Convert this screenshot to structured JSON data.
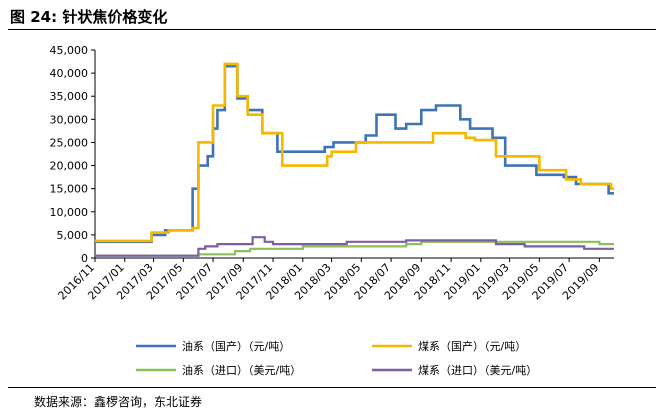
{
  "figure": {
    "title": "图  24:  针状焦价格变化",
    "source": "数据来源：鑫椤咨询，东北证券"
  },
  "chart_data": {
    "type": "line",
    "title": "",
    "xlabel": "",
    "ylabel": "",
    "ylim": [
      0,
      45000
    ],
    "yticks": [
      "0",
      "5,000",
      "10,000",
      "15,000",
      "20,000",
      "25,000",
      "30,000",
      "35,000",
      "40,000",
      "45,000"
    ],
    "xticks": [
      "2016/11",
      "2017/01",
      "2017/03",
      "2017/05",
      "2017/07",
      "2017/09",
      "2017/11",
      "2018/01",
      "2018/03",
      "2018/05",
      "2018/07",
      "2018/09",
      "2018/11",
      "2019/01",
      "2019/03",
      "2019/05",
      "2019/07",
      "2019/09"
    ],
    "xrange": [
      "2016-11-01",
      "2019-10-01"
    ],
    "grid": false,
    "legend_position": "bottom",
    "series": [
      {
        "name": "油系（国产）（元/吨）",
        "color": "#3e73b6",
        "points": [
          [
            "2016-11-01",
            3500
          ],
          [
            "2017-02-25",
            3500
          ],
          [
            "2017-02-25",
            5000
          ],
          [
            "2017-03-25",
            5000
          ],
          [
            "2017-03-25",
            6000
          ],
          [
            "2017-05-20",
            6000
          ],
          [
            "2017-05-20",
            15000
          ],
          [
            "2017-06-01",
            15000
          ],
          [
            "2017-06-01",
            20000
          ],
          [
            "2017-06-20",
            20000
          ],
          [
            "2017-06-20",
            22000
          ],
          [
            "2017-07-01",
            22000
          ],
          [
            "2017-07-01",
            28000
          ],
          [
            "2017-07-10",
            28000
          ],
          [
            "2017-07-10",
            32000
          ],
          [
            "2017-07-25",
            32000
          ],
          [
            "2017-07-25",
            41500
          ],
          [
            "2017-08-20",
            41500
          ],
          [
            "2017-08-20",
            34500
          ],
          [
            "2017-09-10",
            34500
          ],
          [
            "2017-09-10",
            32000
          ],
          [
            "2017-10-10",
            32000
          ],
          [
            "2017-10-10",
            27000
          ],
          [
            "2017-11-10",
            27000
          ],
          [
            "2017-11-10",
            23000
          ],
          [
            "2018-02-15",
            23000
          ],
          [
            "2018-02-15",
            24000
          ],
          [
            "2018-03-05",
            24000
          ],
          [
            "2018-03-05",
            25000
          ],
          [
            "2018-05-10",
            25000
          ],
          [
            "2018-05-10",
            26500
          ],
          [
            "2018-06-01",
            26500
          ],
          [
            "2018-06-01",
            31000
          ],
          [
            "2018-07-10",
            31000
          ],
          [
            "2018-07-10",
            28000
          ],
          [
            "2018-08-01",
            28000
          ],
          [
            "2018-08-01",
            29000
          ],
          [
            "2018-09-01",
            29000
          ],
          [
            "2018-09-01",
            32000
          ],
          [
            "2018-10-01",
            32000
          ],
          [
            "2018-10-01",
            33000
          ],
          [
            "2018-11-20",
            33000
          ],
          [
            "2018-11-20",
            30000
          ],
          [
            "2018-12-10",
            30000
          ],
          [
            "2018-12-10",
            28000
          ],
          [
            "2019-01-25",
            28000
          ],
          [
            "2019-01-25",
            26000
          ],
          [
            "2019-02-20",
            26000
          ],
          [
            "2019-02-20",
            20000
          ],
          [
            "2019-04-25",
            20000
          ],
          [
            "2019-04-25",
            18000
          ],
          [
            "2019-06-20",
            18000
          ],
          [
            "2019-06-20",
            17500
          ],
          [
            "2019-07-15",
            17500
          ],
          [
            "2019-07-15",
            16000
          ],
          [
            "2019-09-20",
            16000
          ],
          [
            "2019-09-20",
            14000
          ],
          [
            "2019-10-01",
            14000
          ]
        ]
      },
      {
        "name": "煤系（国产）（元/吨）",
        "color": "#f5b800",
        "points": [
          [
            "2016-11-01",
            3700
          ],
          [
            "2017-02-25",
            3700
          ],
          [
            "2017-02-25",
            5500
          ],
          [
            "2017-04-01",
            5500
          ],
          [
            "2017-04-01",
            6000
          ],
          [
            "2017-05-20",
            6000
          ],
          [
            "2017-05-20",
            6500
          ],
          [
            "2017-06-01",
            6500
          ],
          [
            "2017-06-01",
            25000
          ],
          [
            "2017-07-01",
            25000
          ],
          [
            "2017-07-01",
            33000
          ],
          [
            "2017-07-25",
            33000
          ],
          [
            "2017-07-25",
            42000
          ],
          [
            "2017-08-20",
            42000
          ],
          [
            "2017-08-20",
            35000
          ],
          [
            "2017-09-10",
            35000
          ],
          [
            "2017-09-10",
            31000
          ],
          [
            "2017-10-10",
            31000
          ],
          [
            "2017-10-10",
            27000
          ],
          [
            "2017-11-20",
            27000
          ],
          [
            "2017-11-20",
            20000
          ],
          [
            "2018-02-20",
            20000
          ],
          [
            "2018-02-20",
            22000
          ],
          [
            "2018-03-01",
            22000
          ],
          [
            "2018-03-01",
            23000
          ],
          [
            "2018-04-20",
            23000
          ],
          [
            "2018-04-20",
            25000
          ],
          [
            "2018-09-25",
            25000
          ],
          [
            "2018-09-25",
            27000
          ],
          [
            "2018-12-01",
            27000
          ],
          [
            "2018-12-01",
            26000
          ],
          [
            "2018-12-20",
            26000
          ],
          [
            "2018-12-20",
            25500
          ],
          [
            "2019-02-01",
            25500
          ],
          [
            "2019-02-01",
            22000
          ],
          [
            "2019-05-01",
            22000
          ],
          [
            "2019-05-01",
            19000
          ],
          [
            "2019-06-25",
            19000
          ],
          [
            "2019-06-25",
            17000
          ],
          [
            "2019-07-25",
            17000
          ],
          [
            "2019-07-25",
            16000
          ],
          [
            "2019-09-25",
            16000
          ],
          [
            "2019-09-25",
            15000
          ],
          [
            "2019-10-01",
            15000
          ]
        ]
      },
      {
        "name": "油系（进口）（美元/吨）",
        "color": "#8cbe5a",
        "points": [
          [
            "2016-11-01",
            500
          ],
          [
            "2017-06-01",
            500
          ],
          [
            "2017-06-01",
            800
          ],
          [
            "2017-08-15",
            800
          ],
          [
            "2017-08-15",
            1500
          ],
          [
            "2017-09-15",
            1500
          ],
          [
            "2017-09-15",
            2000
          ],
          [
            "2018-01-01",
            2000
          ],
          [
            "2018-01-01",
            2500
          ],
          [
            "2018-08-01",
            2500
          ],
          [
            "2018-08-01",
            3000
          ],
          [
            "2018-09-01",
            3000
          ],
          [
            "2018-09-01",
            3500
          ],
          [
            "2019-09-01",
            3500
          ],
          [
            "2019-09-01",
            3000
          ],
          [
            "2019-10-01",
            3000
          ]
        ]
      },
      {
        "name": "煤系（进口）（美元/吨）",
        "color": "#7c5ea3",
        "points": [
          [
            "2016-11-01",
            500
          ],
          [
            "2017-06-01",
            500
          ],
          [
            "2017-06-01",
            2000
          ],
          [
            "2017-06-15",
            2000
          ],
          [
            "2017-06-15",
            2500
          ],
          [
            "2017-07-10",
            2500
          ],
          [
            "2017-07-10",
            3000
          ],
          [
            "2017-09-20",
            3000
          ],
          [
            "2017-09-20",
            4500
          ],
          [
            "2017-10-15",
            4500
          ],
          [
            "2017-10-15",
            3500
          ],
          [
            "2017-11-01",
            3500
          ],
          [
            "2017-11-01",
            3000
          ],
          [
            "2018-04-01",
            3000
          ],
          [
            "2018-04-01",
            3500
          ],
          [
            "2018-08-01",
            3500
          ],
          [
            "2018-08-01",
            3800
          ],
          [
            "2019-02-01",
            3800
          ],
          [
            "2019-02-01",
            3000
          ],
          [
            "2019-04-01",
            3000
          ],
          [
            "2019-04-01",
            2500
          ],
          [
            "2019-08-01",
            2500
          ],
          [
            "2019-08-01",
            2000
          ],
          [
            "2019-10-01",
            2000
          ]
        ]
      }
    ]
  }
}
